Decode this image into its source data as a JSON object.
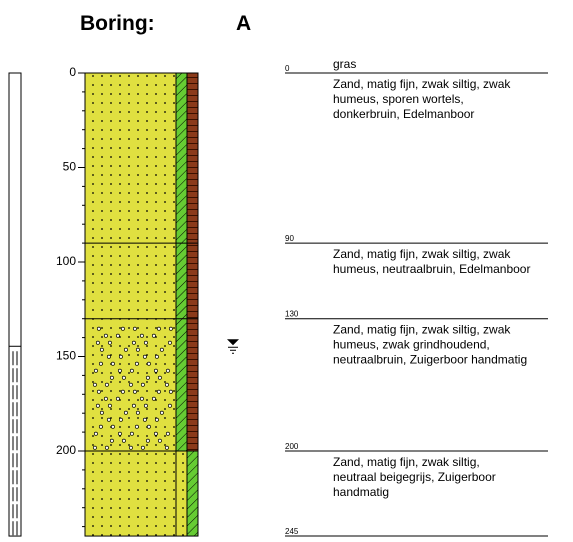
{
  "header": {
    "label": "Boring:",
    "name": "A"
  },
  "depth_axis": {
    "ticks": [
      0,
      50,
      100,
      150,
      200
    ]
  },
  "boundaries": [
    0,
    90,
    130,
    200,
    245
  ],
  "top_layer": "gras",
  "layers": [
    {
      "description": [
        "Zand, matig fijn, zwak siltig, zwak",
        "humeus, sporen wortels,",
        "donkerbruin, Edelmanboor"
      ]
    },
    {
      "description": [
        "Zand, matig fijn, zwak siltig, zwak",
        "humeus, neutraalbruin, Edelmanboor"
      ]
    },
    {
      "description": [
        "Zand, matig fijn, zwak siltig, zwak",
        "humeus, zwak grindhoudend,",
        "neutraalbruin, Zuigerboor handmatig"
      ]
    },
    {
      "description": [
        "Zand, matig fijn, zwak siltig,",
        "neutraal beigegrijs, Zuigerboor",
        "handmatig"
      ]
    }
  ],
  "groundwater_depth": 143
}
